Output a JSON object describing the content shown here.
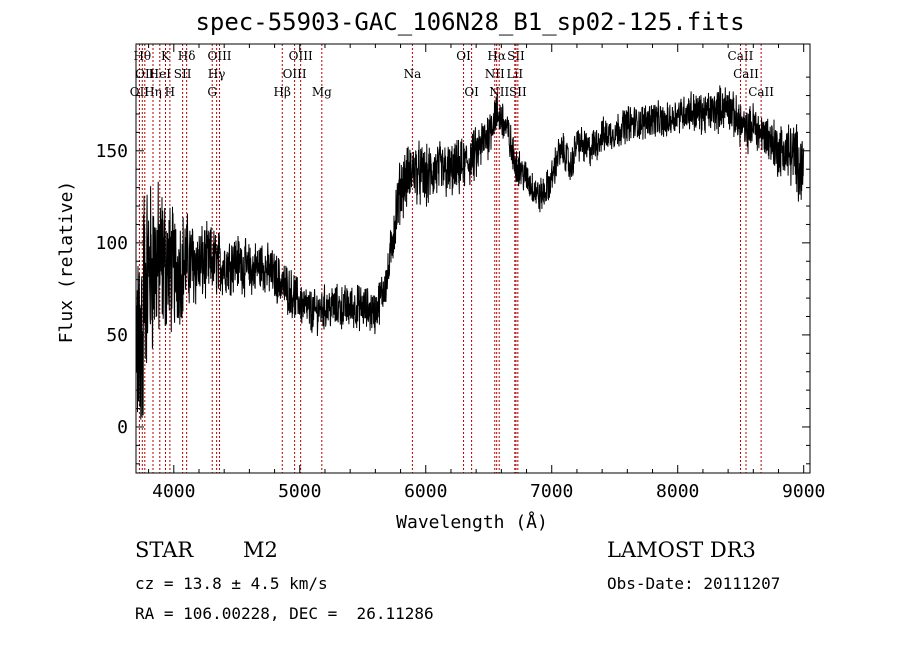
{
  "title": "spec-55903-GAC_106N28_B1_sp02-125.fits",
  "footer": {
    "class_label": "STAR",
    "subclass": "M2",
    "survey": "LAMOST DR3",
    "cz_line": "cz = 13.8 ± 4.5 km/s",
    "obs_date_line": "Obs-Date: 20111207",
    "coords_line": "RA = 106.00228, DEC =  26.11286"
  },
  "chart_data": {
    "type": "line",
    "title": "spec-55903-GAC_106N28_B1_sp02-125.fits",
    "xlabel": "Wavelength (Å)",
    "ylabel": "Flux (relative)",
    "xlim": [
      3700,
      9050
    ],
    "ylim": [
      -25,
      208
    ],
    "xticks": [
      4000,
      5000,
      6000,
      7000,
      8000,
      9000
    ],
    "yticks": [
      0,
      50,
      100,
      150
    ],
    "series": [
      {
        "name": "flux",
        "x": [
          3700,
          3800,
          3900,
          4000,
          4100,
          4200,
          4300,
          4400,
          4500,
          4600,
          4700,
          4800,
          4900,
          5000,
          5100,
          5200,
          5300,
          5400,
          5500,
          5600,
          5700,
          5750,
          5800,
          5900,
          6000,
          6100,
          6200,
          6300,
          6400,
          6500,
          6550,
          6600,
          6650,
          6700,
          6750,
          6800,
          6850,
          6900,
          6950,
          7000,
          7050,
          7100,
          7150,
          7200,
          7300,
          7400,
          7500,
          7600,
          7700,
          7800,
          7900,
          8000,
          8100,
          8200,
          8300,
          8400,
          8450,
          8500,
          8550,
          8600,
          8650,
          8700,
          8750,
          8800,
          8850,
          8900,
          8950,
          9000
        ],
        "y": [
          75,
          85,
          90,
          85,
          90,
          88,
          90,
          88,
          90,
          85,
          88,
          82,
          75,
          68,
          62,
          65,
          65,
          65,
          65,
          62,
          82,
          110,
          130,
          140,
          135,
          140,
          138,
          142,
          148,
          160,
          170,
          168,
          160,
          145,
          140,
          135,
          130,
          125,
          128,
          135,
          148,
          150,
          140,
          155,
          150,
          158,
          160,
          165,
          165,
          168,
          165,
          170,
          172,
          170,
          172,
          175,
          168,
          165,
          160,
          165,
          160,
          158,
          155,
          150,
          150,
          148,
          145,
          140
        ]
      }
    ],
    "noise_amplitude": [
      50,
      42,
      35,
      28,
      22,
      18,
      16,
      14,
      13,
      12,
      12,
      11,
      11,
      10,
      10,
      10,
      10,
      10,
      10,
      10,
      10,
      14,
      14,
      14,
      14,
      13,
      13,
      12,
      12,
      11,
      10,
      10,
      10,
      9,
      8,
      8,
      8,
      8,
      8,
      8,
      8,
      8,
      8,
      8,
      8,
      8,
      8,
      8,
      8,
      8,
      8,
      8,
      9,
      9,
      10,
      10,
      10,
      10,
      10,
      10,
      10,
      10,
      12,
      12,
      14,
      14,
      16,
      18
    ],
    "lines": [
      {
        "label": "OII",
        "x": 3727,
        "row": 2
      },
      {
        "label": "Hθ",
        "x": 3750,
        "row": 0
      },
      {
        "label": "OII",
        "x": 3770,
        "row": 1
      },
      {
        "label": "Hη",
        "x": 3835,
        "row": 2
      },
      {
        "label": "K",
        "x": 3934,
        "row": 0
      },
      {
        "label": "HeI",
        "x": 3889,
        "row": 1
      },
      {
        "label": "H",
        "x": 3969,
        "row": 2
      },
      {
        "label": "SII",
        "x": 4070,
        "row": 1
      },
      {
        "label": "Hδ",
        "x": 4102,
        "row": 0
      },
      {
        "label": "G",
        "x": 4305,
        "row": 2
      },
      {
        "label": "Hγ",
        "x": 4340,
        "row": 1
      },
      {
        "label": "OIII",
        "x": 4363,
        "row": 0
      },
      {
        "label": "Hβ",
        "x": 4861,
        "row": 2
      },
      {
        "label": "OIII",
        "x": 4959,
        "row": 1
      },
      {
        "label": "OIII",
        "x": 5007,
        "row": 0
      },
      {
        "label": "Mg",
        "x": 5175,
        "row": 2
      },
      {
        "label": "Na",
        "x": 5894,
        "row": 1
      },
      {
        "label": "OI",
        "x": 6300,
        "row": 0
      },
      {
        "label": "OI",
        "x": 6364,
        "row": 2
      },
      {
        "label": "NII",
        "x": 6548,
        "row": 1
      },
      {
        "label": "NII",
        "x": 6583,
        "row": 2
      },
      {
        "label": "Hα",
        "x": 6563,
        "row": 0
      },
      {
        "label": "LiI",
        "x": 6707,
        "row": 1
      },
      {
        "label": "SII",
        "x": 6716,
        "row": 0
      },
      {
        "label": "SII",
        "x": 6731,
        "row": 2
      },
      {
        "label": "CaII",
        "x": 8498,
        "row": 0
      },
      {
        "label": "CaII",
        "x": 8542,
        "row": 1
      },
      {
        "label": "CaII",
        "x": 8662,
        "row": 2
      }
    ]
  },
  "colors": {
    "marker": "#b30000",
    "axis": "#000000",
    "line": "#000000"
  }
}
